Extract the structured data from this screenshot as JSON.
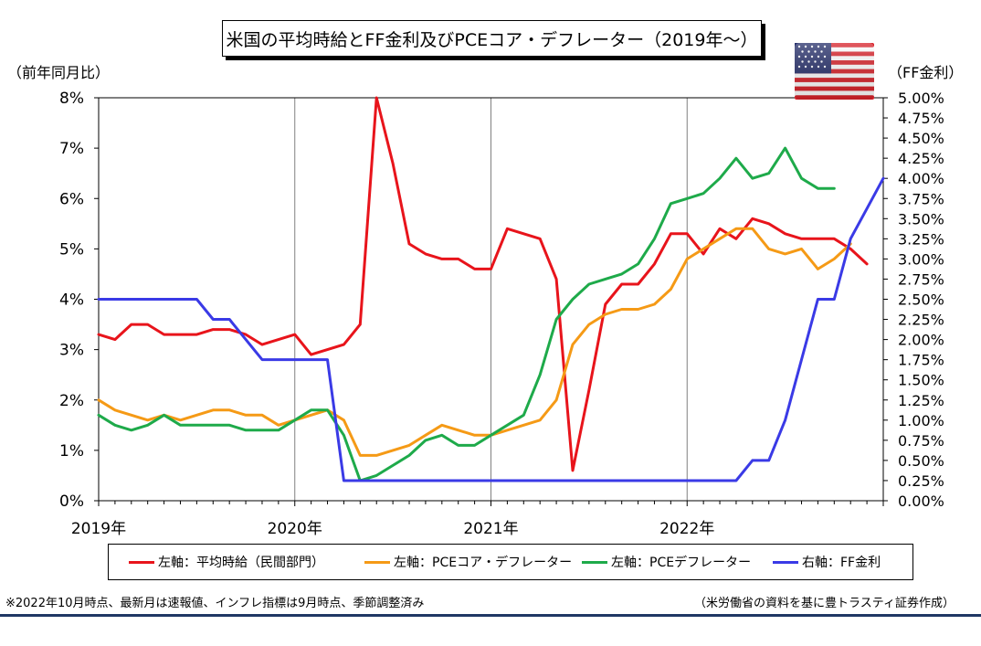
{
  "title": "米国の平均時給とFF金利及びPCEコア・デフレーター（2019年～）",
  "left_axis_unit": "（前年同月比）",
  "right_axis_unit": "（FF金利）",
  "footnote_left": "※2022年10月時点、最新月は速報値、インフレ指標は9月時点、季節調整済み",
  "footnote_right": "（米労働省の資料を基に豊トラスティ証券作成）",
  "flag_icon": "us-flag-icon",
  "colors": {
    "wage": "#e8141b",
    "pce_core": "#f59a16",
    "pce": "#1eaa4a",
    "ff": "#3a3ae6",
    "grid": "#808080"
  },
  "legend": [
    {
      "label": "左軸：平均時給（民間部門）",
      "color": "#e8141b"
    },
    {
      "label": "左軸：PCEコア・デフレーター",
      "color": "#f59a16"
    },
    {
      "label": "左軸：PCEデフレーター",
      "color": "#1eaa4a"
    },
    {
      "label": "右軸：FF金利",
      "color": "#3a3ae6"
    }
  ],
  "chart_data": {
    "type": "line",
    "x_start": "2019-01",
    "x_ticks": [
      "2019年",
      "2020年",
      "2021年",
      "2022年"
    ],
    "y_left": {
      "range": [
        0,
        8
      ],
      "ticks": [
        "0%",
        "1%",
        "2%",
        "3%",
        "4%",
        "5%",
        "6%",
        "7%",
        "8%"
      ]
    },
    "y_right": {
      "range": [
        0,
        5
      ],
      "ticks": [
        "0.00%",
        "0.25%",
        "0.50%",
        "0.75%",
        "1.00%",
        "1.25%",
        "1.50%",
        "1.75%",
        "2.00%",
        "2.25%",
        "2.50%",
        "2.75%",
        "3.00%",
        "3.25%",
        "3.50%",
        "3.75%",
        "4.00%",
        "4.25%",
        "4.50%",
        "4.75%",
        "5.00%"
      ]
    },
    "grid": "vertical",
    "series": [
      {
        "name": "左軸：平均時給（民間部門）",
        "axis": "left",
        "values": [
          3.3,
          3.2,
          3.5,
          3.5,
          3.3,
          3.3,
          3.3,
          3.4,
          3.4,
          3.3,
          3.1,
          3.2,
          3.3,
          2.9,
          3.0,
          3.1,
          3.5,
          8.0,
          6.7,
          5.1,
          4.9,
          4.8,
          4.8,
          4.6,
          4.6,
          5.4,
          5.3,
          5.2,
          4.4,
          0.6,
          2.2,
          3.9,
          4.3,
          4.3,
          4.7,
          5.3,
          5.3,
          4.9,
          5.4,
          5.2,
          5.6,
          5.5,
          5.3,
          5.2,
          5.2,
          5.2,
          5.0,
          4.7
        ]
      },
      {
        "name": "左軸：PCEコア・デフレーター",
        "axis": "left",
        "values": [
          2.0,
          1.8,
          1.7,
          1.6,
          1.7,
          1.6,
          1.7,
          1.8,
          1.8,
          1.7,
          1.7,
          1.5,
          1.6,
          1.7,
          1.8,
          1.6,
          0.9,
          0.9,
          1.0,
          1.1,
          1.3,
          1.5,
          1.4,
          1.3,
          1.3,
          1.4,
          1.5,
          1.6,
          2.0,
          3.1,
          3.5,
          3.7,
          3.8,
          3.8,
          3.9,
          4.2,
          4.8,
          5.0,
          5.2,
          5.4,
          5.4,
          5.0,
          4.9,
          5.0,
          4.6,
          4.8,
          5.1
        ]
      },
      {
        "name": "左軸：PCEデフレーター",
        "axis": "left",
        "values": [
          1.7,
          1.5,
          1.4,
          1.5,
          1.7,
          1.5,
          1.5,
          1.5,
          1.5,
          1.4,
          1.4,
          1.4,
          1.6,
          1.8,
          1.8,
          1.3,
          0.4,
          0.5,
          0.7,
          0.9,
          1.2,
          1.3,
          1.1,
          1.1,
          1.3,
          1.5,
          1.7,
          2.5,
          3.6,
          4.0,
          4.3,
          4.4,
          4.5,
          4.7,
          5.2,
          5.9,
          6.0,
          6.1,
          6.4,
          6.8,
          6.4,
          6.5,
          7.0,
          6.4,
          6.2,
          6.2
        ]
      },
      {
        "name": "右軸：FF金利",
        "axis": "right",
        "values": [
          2.5,
          2.5,
          2.5,
          2.5,
          2.5,
          2.5,
          2.5,
          2.25,
          2.25,
          2.0,
          1.75,
          1.75,
          1.75,
          1.75,
          1.75,
          0.25,
          0.25,
          0.25,
          0.25,
          0.25,
          0.25,
          0.25,
          0.25,
          0.25,
          0.25,
          0.25,
          0.25,
          0.25,
          0.25,
          0.25,
          0.25,
          0.25,
          0.25,
          0.25,
          0.25,
          0.25,
          0.25,
          0.25,
          0.25,
          0.25,
          0.5,
          0.5,
          1.0,
          1.75,
          2.5,
          2.5,
          3.25,
          3.625,
          4.0
        ]
      }
    ]
  }
}
